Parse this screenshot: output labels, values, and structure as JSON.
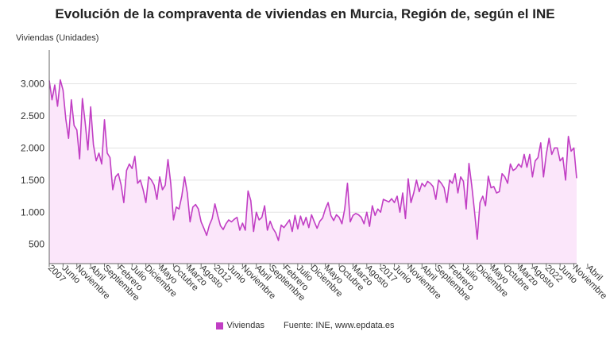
{
  "colors": {
    "series": "#c13ec4",
    "fill": "#fbe6fa",
    "grid": "#e2e2e2",
    "axis": "#666666"
  },
  "chart_data": {
    "type": "area",
    "title": "Evolución de la compraventa de viviendas en Murcia, Región de, según el INE",
    "ylabel": "Viviendas (Unidades)",
    "xlabel": "",
    "ylim": [
      200,
      3500
    ],
    "yticks": [
      500,
      1000,
      1500,
      2000,
      2500,
      3000
    ],
    "ytick_labels": [
      "500",
      "1.000",
      "1.500",
      "2.000",
      "2.500",
      "3.000"
    ],
    "grid": true,
    "legend": "bottom-center",
    "start_month": "2007-01",
    "x_labels": [
      {
        "i": 0,
        "label": "2007"
      },
      {
        "i": 5,
        "label": "Junio"
      },
      {
        "i": 10,
        "label": "Noviembre"
      },
      {
        "i": 15,
        "label": "Abril"
      },
      {
        "i": 20,
        "label": "Septiembre"
      },
      {
        "i": 25,
        "label": "Febrero"
      },
      {
        "i": 30,
        "label": "Julio"
      },
      {
        "i": 35,
        "label": "Diciembre"
      },
      {
        "i": 40,
        "label": "Mayo"
      },
      {
        "i": 45,
        "label": "Octubre"
      },
      {
        "i": 50,
        "label": "Marzo"
      },
      {
        "i": 55,
        "label": "Agosto"
      },
      {
        "i": 60,
        "label": "2012"
      },
      {
        "i": 65,
        "label": "Junio"
      },
      {
        "i": 70,
        "label": "Noviembre"
      },
      {
        "i": 75,
        "label": "Abril"
      },
      {
        "i": 80,
        "label": "Septiembre"
      },
      {
        "i": 85,
        "label": "Febrero"
      },
      {
        "i": 90,
        "label": "Julio"
      },
      {
        "i": 95,
        "label": "Diciembre"
      },
      {
        "i": 100,
        "label": "Mayo"
      },
      {
        "i": 105,
        "label": "Octubre"
      },
      {
        "i": 110,
        "label": "Marzo"
      },
      {
        "i": 115,
        "label": "Agosto"
      },
      {
        "i": 120,
        "label": "2017"
      },
      {
        "i": 125,
        "label": "Junio"
      },
      {
        "i": 130,
        "label": "Noviembre"
      },
      {
        "i": 135,
        "label": "Abril"
      },
      {
        "i": 140,
        "label": "Septiembre"
      },
      {
        "i": 145,
        "label": "Febrero"
      },
      {
        "i": 150,
        "label": "Julio"
      },
      {
        "i": 155,
        "label": "Diciembre"
      },
      {
        "i": 160,
        "label": "Mayo"
      },
      {
        "i": 165,
        "label": "Octubre"
      },
      {
        "i": 170,
        "label": "Marzo"
      },
      {
        "i": 175,
        "label": "Agosto"
      },
      {
        "i": 180,
        "label": "2022"
      },
      {
        "i": 185,
        "label": "Junio"
      },
      {
        "i": 190,
        "label": "Noviembre"
      },
      {
        "i": 195,
        "label": "Abril"
      }
    ],
    "series": [
      {
        "name": "Viviendas",
        "values": [
          3050,
          2750,
          2980,
          2650,
          3060,
          2900,
          2450,
          2150,
          2750,
          2350,
          2280,
          1830,
          2770,
          2400,
          1970,
          2640,
          2050,
          1800,
          1920,
          1750,
          2440,
          1920,
          1850,
          1350,
          1550,
          1600,
          1430,
          1150,
          1650,
          1750,
          1680,
          1870,
          1450,
          1500,
          1350,
          1150,
          1550,
          1500,
          1420,
          1200,
          1550,
          1350,
          1420,
          1820,
          1450,
          880,
          1080,
          1050,
          1250,
          1550,
          1300,
          850,
          1080,
          1120,
          1050,
          850,
          750,
          640,
          800,
          900,
          1130,
          950,
          790,
          730,
          820,
          880,
          850,
          890,
          920,
          720,
          830,
          720,
          1330,
          1180,
          700,
          1000,
          880,
          920,
          1100,
          720,
          860,
          750,
          680,
          560,
          800,
          760,
          820,
          880,
          700,
          950,
          740,
          940,
          800,
          920,
          760,
          960,
          850,
          750,
          860,
          910,
          1050,
          1150,
          950,
          870,
          960,
          920,
          820,
          1050,
          1450,
          850,
          950,
          980,
          960,
          920,
          820,
          1000,
          780,
          1100,
          950,
          1050,
          1000,
          1200,
          1180,
          1160,
          1210,
          1150,
          1250,
          1000,
          1300,
          900,
          1520,
          1150,
          1300,
          1500,
          1320,
          1450,
          1400,
          1480,
          1450,
          1400,
          1200,
          1500,
          1450,
          1380,
          1150,
          1500,
          1450,
          1600,
          1300,
          1550,
          1480,
          1050,
          1760,
          1420,
          1020,
          580,
          1150,
          1250,
          1100,
          1560,
          1380,
          1400,
          1300,
          1320,
          1600,
          1550,
          1450,
          1750,
          1650,
          1680,
          1750,
          1700,
          1900,
          1700,
          1900,
          1550,
          1800,
          1850,
          2080,
          1550,
          1900,
          2150,
          1900,
          2000,
          2000,
          1800,
          1850,
          1500,
          2180,
          1950,
          2000,
          1530
        ]
      }
    ]
  },
  "legend": {
    "label": "Viviendas",
    "source": "Fuente: INE, www.epdata.es"
  }
}
